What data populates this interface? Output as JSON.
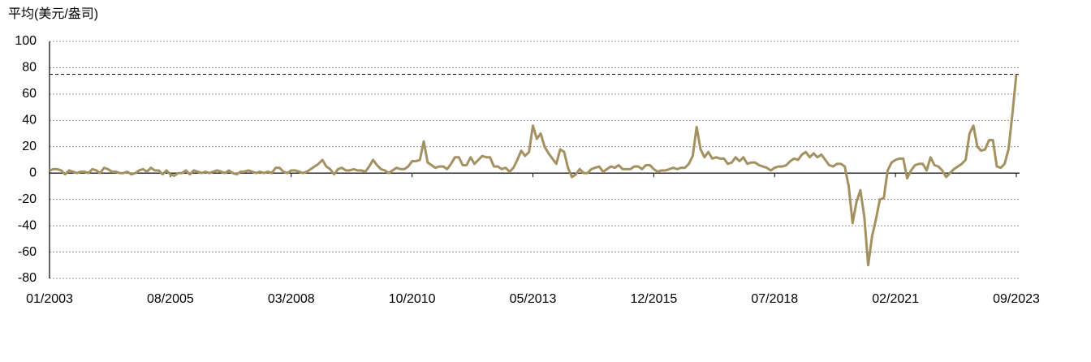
{
  "chart_data": {
    "type": "line",
    "title": "平均(美元/盎司)",
    "categories": [
      "01/2003",
      null,
      null,
      null,
      null,
      null,
      null,
      null,
      null,
      null,
      null,
      null,
      null,
      null,
      null,
      null,
      null,
      null,
      null,
      null,
      null,
      null,
      null,
      null,
      null,
      null,
      null,
      null,
      null,
      null,
      null,
      "08/2005",
      null,
      null,
      null,
      null,
      null,
      null,
      null,
      null,
      null,
      null,
      null,
      null,
      null,
      null,
      null,
      null,
      null,
      null,
      null,
      null,
      null,
      null,
      null,
      null,
      null,
      null,
      null,
      null,
      null,
      null,
      "03/2008",
      null,
      null,
      null,
      null,
      null,
      null,
      null,
      null,
      null,
      null,
      null,
      null,
      null,
      null,
      null,
      null,
      null,
      null,
      null,
      null,
      null,
      null,
      null,
      null,
      null,
      null,
      null,
      null,
      null,
      null,
      "10/2010",
      null,
      null,
      null,
      null,
      null,
      null,
      null,
      null,
      null,
      null,
      null,
      null,
      null,
      null,
      null,
      null,
      null,
      null,
      null,
      null,
      null,
      null,
      null,
      null,
      null,
      null,
      null,
      null,
      null,
      null,
      "05/2013",
      null,
      null,
      null,
      null,
      null,
      null,
      null,
      null,
      null,
      null,
      null,
      null,
      null,
      null,
      null,
      null,
      null,
      null,
      null,
      null,
      null,
      null,
      null,
      null,
      null,
      null,
      null,
      null,
      null,
      null,
      "12/2015",
      null,
      null,
      null,
      null,
      null,
      null,
      null,
      null,
      null,
      null,
      null,
      null,
      null,
      null,
      null,
      null,
      null,
      null,
      null,
      null,
      null,
      null,
      null,
      null,
      null,
      null,
      null,
      null,
      null,
      null,
      "07/2018",
      null,
      null,
      null,
      null,
      null,
      null,
      null,
      null,
      null,
      null,
      null,
      null,
      null,
      null,
      null,
      null,
      null,
      null,
      null,
      null,
      null,
      null,
      null,
      null,
      null,
      null,
      null,
      null,
      null,
      null,
      "02/2021",
      null,
      null,
      null,
      null,
      null,
      null,
      null,
      null,
      null,
      null,
      null,
      null,
      null,
      null,
      null,
      null,
      null,
      null,
      null,
      null,
      null,
      null,
      null,
      null,
      null,
      null,
      null,
      null,
      null,
      null,
      "09/2023"
    ],
    "series": [
      {
        "color": "#a39161",
        "values": [
          2,
          3,
          3,
          2,
          -1,
          2,
          1,
          0,
          1,
          1,
          0,
          3,
          2,
          0,
          4,
          3,
          1,
          1,
          0,
          0,
          1,
          -1,
          0,
          2,
          3,
          1,
          4,
          2,
          2,
          -1,
          2,
          -1,
          -2,
          0,
          0,
          2,
          -1,
          2,
          1,
          0,
          1,
          0,
          1,
          2,
          1,
          0,
          2,
          0,
          -1,
          1,
          1,
          2,
          1,
          0,
          1,
          0,
          1,
          0,
          4,
          4,
          1,
          0,
          2,
          2,
          1,
          0,
          1,
          3,
          5,
          7,
          10,
          5,
          3,
          -1,
          3,
          4,
          2,
          2,
          3,
          2,
          2,
          1,
          5,
          10,
          6,
          3,
          2,
          0,
          2,
          4,
          3,
          3,
          5,
          9,
          9,
          10,
          24,
          8,
          6,
          4,
          5,
          5,
          3,
          7,
          12,
          12,
          6,
          6,
          12,
          7,
          10,
          13,
          12,
          12,
          5,
          5,
          3,
          4,
          1,
          4,
          10,
          17,
          13,
          16,
          36,
          26,
          30,
          20,
          15,
          11,
          7,
          18,
          16,
          4,
          -3,
          -1,
          3,
          0,
          0,
          3,
          4,
          5,
          1,
          3,
          5,
          4,
          6,
          3,
          3,
          3,
          5,
          5,
          3,
          6,
          6,
          3,
          1,
          2,
          2,
          3,
          4,
          3,
          4,
          4,
          7,
          13,
          35,
          18,
          12,
          16,
          11,
          12,
          11,
          11,
          7,
          8,
          12,
          9,
          12,
          7,
          8,
          8,
          6,
          5,
          4,
          2,
          4,
          5,
          5,
          6,
          9,
          11,
          10,
          14,
          16,
          12,
          15,
          12,
          14,
          10,
          6,
          5,
          7,
          7,
          5,
          -10,
          -38,
          -22,
          -13,
          -33,
          -70,
          -48,
          -35,
          -20,
          -19,
          2,
          8,
          10,
          11,
          11,
          -4,
          2,
          6,
          7,
          7,
          2,
          12,
          6,
          5,
          2,
          -3,
          0,
          3,
          5,
          7,
          10,
          30,
          36,
          20,
          17,
          18,
          25,
          25,
          5,
          4,
          7,
          18,
          45,
          75
        ]
      }
    ],
    "ylim": [
      -80,
      100
    ],
    "yticks": [
      -80,
      -60,
      -40,
      -20,
      0,
      20,
      40,
      60,
      80,
      100
    ],
    "grid": true,
    "reference_line": 75
  }
}
